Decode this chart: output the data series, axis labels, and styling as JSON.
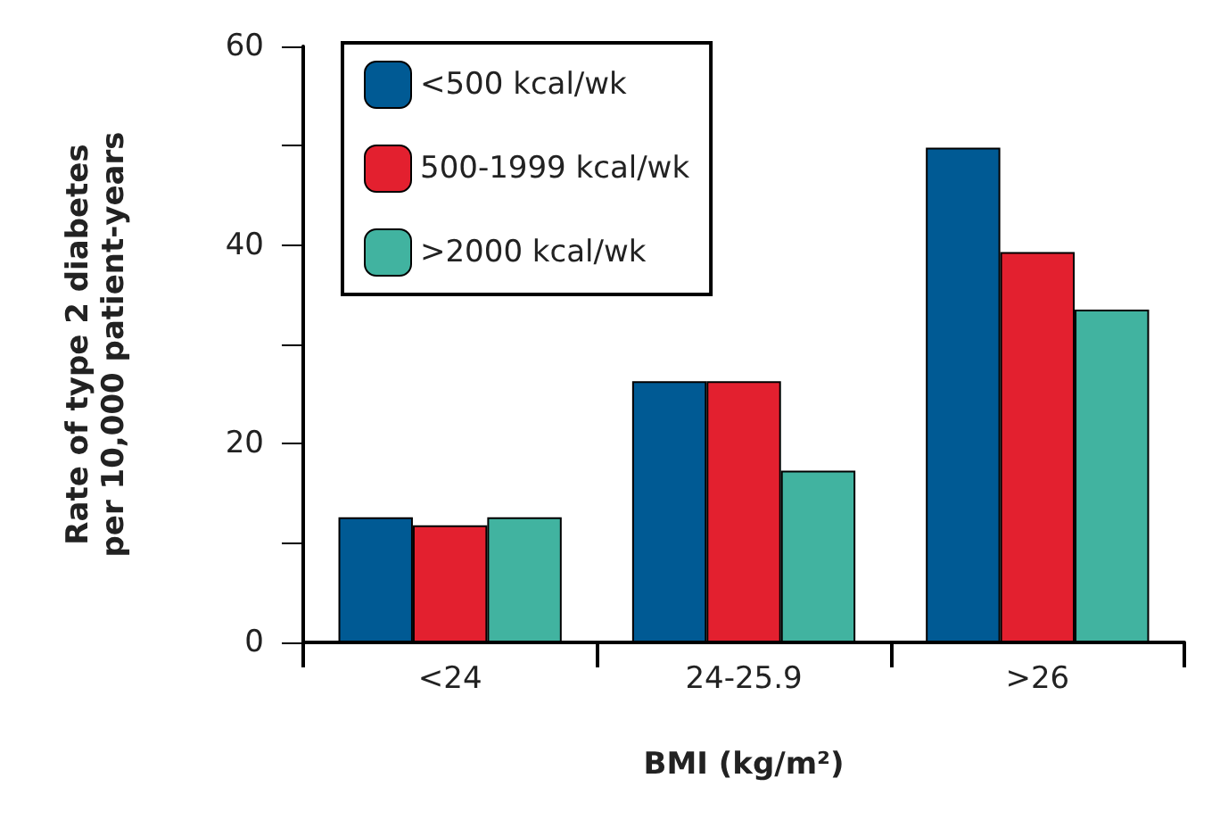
{
  "chart_data": {
    "type": "bar",
    "xlabel": "BMI (kg/m²)",
    "ylabel": "Rate of type 2 diabetes\nper 10,000 patient-years",
    "categories": [
      "<24",
      "24-25.9",
      ">26"
    ],
    "series": [
      {
        "name": "<500 kcal/wk",
        "color": "#005a94",
        "values": [
          12.6,
          26.3,
          49.8
        ]
      },
      {
        "name": "500-1999 kcal/wk",
        "color": "#e3202f",
        "values": [
          11.8,
          26.3,
          39.3
        ]
      },
      {
        "name": ">2000 kcal/wk",
        "color": "#41b3a0",
        "values": [
          12.6,
          17.3,
          33.5
        ]
      }
    ],
    "ylim": [
      0,
      60
    ],
    "yticks": [
      0,
      {
        "value": 10,
        "label": null
      },
      20,
      {
        "value": 30,
        "label": null
      },
      40,
      {
        "value": 50,
        "label": null
      },
      60
    ],
    "grid": false,
    "legend": "top left"
  }
}
